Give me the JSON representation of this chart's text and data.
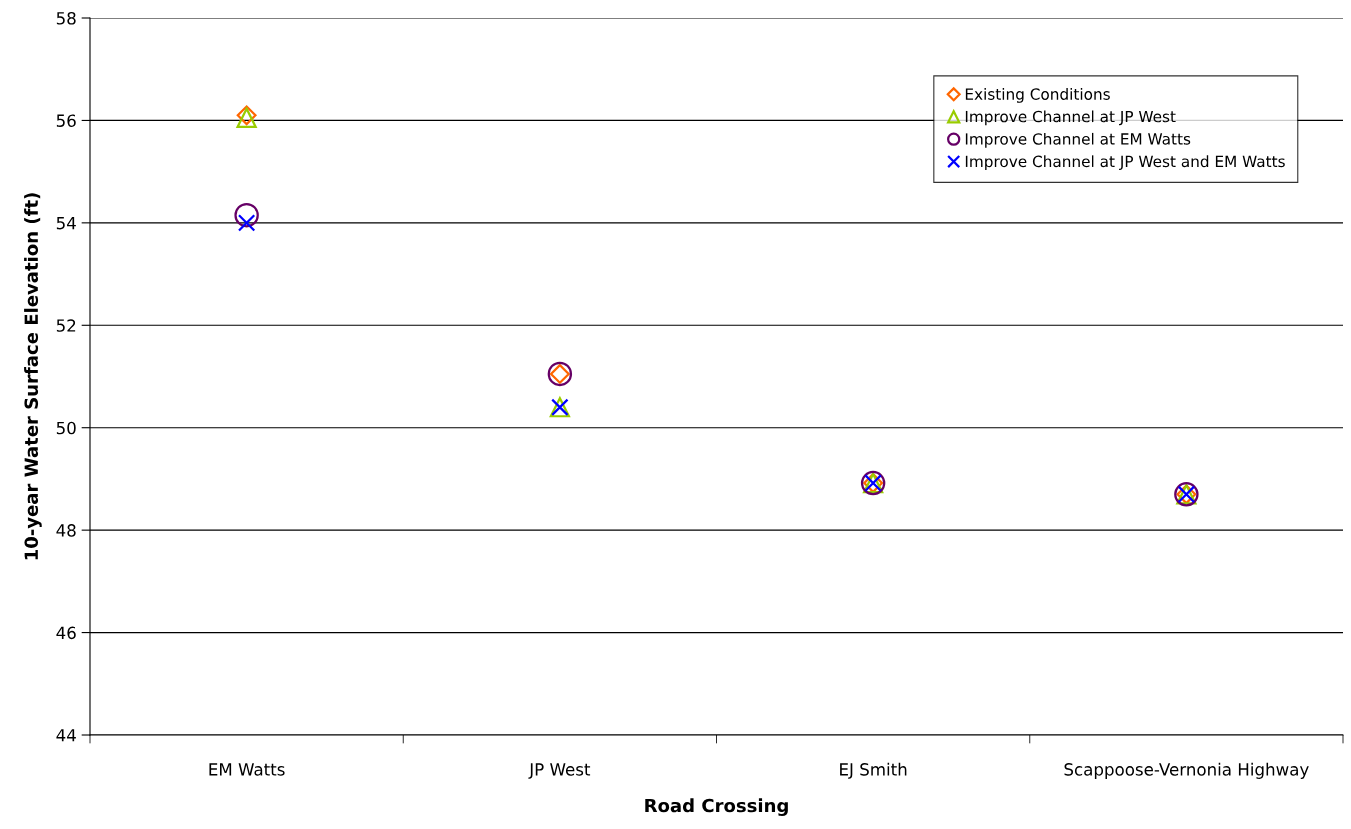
{
  "chart_data": {
    "type": "scatter",
    "xlabel": "Road Crossing",
    "ylabel": "10-year Water Surface Elevation (ft)",
    "categories": [
      "EM Watts",
      "JP West",
      "EJ Smith",
      "Scappoose-Vernonia Highway"
    ],
    "series": [
      {
        "name": "Existing Conditions",
        "color": "#ff6600",
        "marker": "diamond",
        "values": [
          56.1,
          51.05,
          48.92,
          48.7
        ]
      },
      {
        "name": "Improve Channel at JP West",
        "color": "#99cc00",
        "marker": "triangle",
        "values": [
          56.05,
          50.4,
          48.92,
          48.7
        ]
      },
      {
        "name": "Improve Channel at EM Watts",
        "color": "#660066",
        "marker": "circle",
        "values": [
          54.15,
          51.05,
          48.92,
          48.7
        ]
      },
      {
        "name": "Improve Channel at JP West and EM Watts",
        "color": "#0000ff",
        "marker": "cross",
        "values": [
          54.0,
          50.4,
          48.92,
          48.7
        ]
      }
    ],
    "ylim": [
      44,
      58
    ],
    "yticks": [
      44,
      46,
      48,
      50,
      52,
      54,
      56,
      58
    ],
    "grid": "y",
    "legend": "top right"
  }
}
